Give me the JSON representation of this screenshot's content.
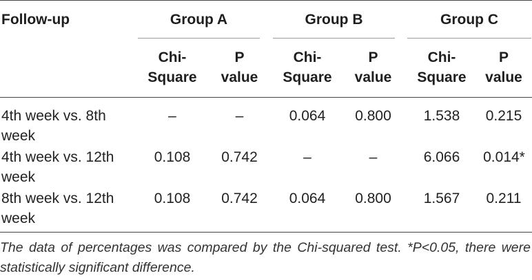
{
  "table": {
    "headers": {
      "follow_up": "Follow-up",
      "groups": [
        "Group A",
        "Group B",
        "Group C"
      ],
      "sub": [
        [
          "Chi-",
          "Square"
        ],
        [
          "P",
          "value"
        ],
        [
          "Chi-",
          "Square"
        ],
        [
          "P",
          "value"
        ],
        [
          "Chi-",
          "Square"
        ],
        [
          "P",
          "value"
        ]
      ]
    },
    "rows": [
      {
        "label": [
          "4th week vs. 8th",
          "week"
        ],
        "values": [
          "–",
          "–",
          "0.064",
          "0.800",
          "1.538",
          "0.215"
        ]
      },
      {
        "label": [
          "4th week vs. 12th",
          "week"
        ],
        "values": [
          "0.108",
          "0.742",
          "–",
          "–",
          "6.066",
          "0.014*"
        ]
      },
      {
        "label": [
          "8th week vs. 12th",
          "week"
        ],
        "values": [
          "0.108",
          "0.742",
          "0.064",
          "0.800",
          "1.567",
          "0.211"
        ]
      }
    ],
    "footnote": "The data of percentages was compared by the Chi-squared test. *P<0.05, there were statistically significant difference."
  }
}
